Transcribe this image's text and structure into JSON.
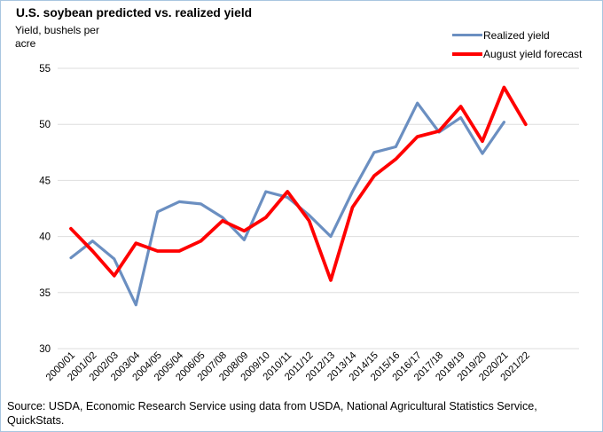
{
  "figure": {
    "title": "U.S. soybean predicted vs. realized yield",
    "y_axis_unit": "Yield, bushels per\nacre",
    "source": "Source: USDA, Economic Research Service using data from USDA, National Agricultural Statistics Service,\nQuickStats."
  },
  "chart_data": {
    "type": "line",
    "title": "U.S. soybean predicted vs. realized yield",
    "ylabel": "Yield, bushels per acre",
    "xlabel": "",
    "categories": [
      "2000/01",
      "2001/02",
      "2002/03",
      "2003/04",
      "2004/05",
      "2005/04",
      "2006/05",
      "2007/08",
      "2008/09",
      "2009/10",
      "2010/11",
      "2011/12",
      "2012/13",
      "2013/14",
      "2014/15",
      "2015/16",
      "2016/17",
      "2017/18",
      "2018/19",
      "2019/20",
      "2020/21",
      "2021/22"
    ],
    "series": [
      {
        "name": "Realized yield",
        "color": "#6b8fc1",
        "values": [
          38.1,
          39.6,
          38.0,
          33.9,
          42.2,
          43.1,
          42.9,
          41.7,
          39.7,
          44.0,
          43.5,
          41.9,
          40.0,
          44.0,
          47.5,
          48.0,
          51.9,
          49.3,
          50.6,
          47.4,
          50.2,
          null
        ]
      },
      {
        "name": "August yield forecast",
        "color": "#ff0000",
        "values": [
          40.7,
          38.7,
          36.5,
          39.4,
          38.7,
          38.7,
          39.6,
          41.4,
          40.5,
          41.7,
          44.0,
          41.4,
          36.1,
          42.6,
          45.4,
          46.9,
          48.9,
          49.4,
          51.6,
          48.5,
          53.3,
          50.0
        ]
      }
    ],
    "ylim": [
      30,
      55
    ],
    "yticks": [
      30,
      35,
      40,
      45,
      50,
      55
    ],
    "grid": true,
    "gridline_color": "#dedede",
    "legend_position": "top-right"
  }
}
